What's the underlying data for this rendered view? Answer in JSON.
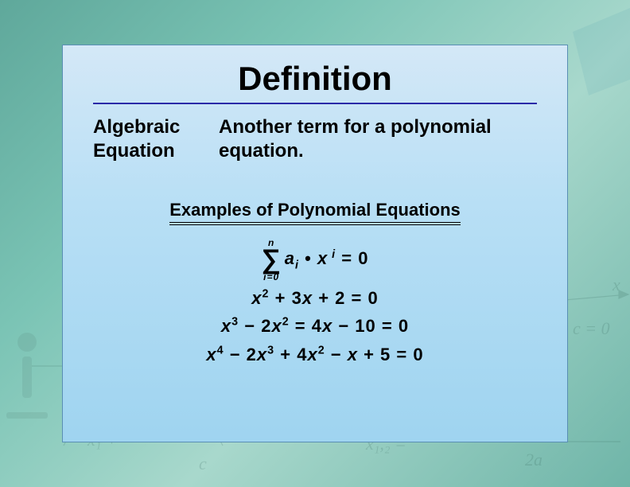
{
  "background": {
    "gradient_colors": [
      "#5fa89b",
      "#7bc4b5",
      "#a8d8cc",
      "#6fb5a8"
    ],
    "decor_opacity": 0.18
  },
  "card": {
    "bg_gradient": [
      "#d4e8f7",
      "#b8dff5",
      "#9fd4f0"
    ],
    "border_color": "#5a8fb5",
    "hr_color": "#2a2aa8"
  },
  "title": {
    "text": "Definition",
    "fontsize": 42,
    "color": "#000000"
  },
  "term": {
    "line1": "Algebraic",
    "line2": "Equation",
    "fontsize": 24
  },
  "definition": {
    "text": "Another term for a polynomial equation.",
    "fontsize": 24
  },
  "examples": {
    "heading": "Examples of Polynomial Equations",
    "heading_fontsize": 22,
    "underline": "double",
    "equations": [
      {
        "type": "summation",
        "upper": "n",
        "lower": "i=0",
        "body_html": "a<sub>i</sub> <span class='n'>•</span> x<sup class='it'> i</sup> <span class='n'> = 0</span>"
      },
      {
        "type": "poly",
        "html": "x<sup>2</sup> <span class='n'>+ 3</span>x <span class='n'>+ 2 = 0</span>"
      },
      {
        "type": "poly",
        "html": "x<sup>3</sup> <span class='n'>− 2</span>x<sup>2</sup> <span class='n'>= 4</span>x <span class='n'>− 10 = 0</span>"
      },
      {
        "type": "poly",
        "html": "x<sup>4</sup> <span class='n'>− 2</span>x<sup>3</sup> <span class='n'>+ 4</span>x<sup>2</sup> <span class='n'>−</span> x <span class='n'>+ 5 = 0</span>"
      }
    ],
    "eq_fontsize": 22,
    "eq_color": "#000000"
  }
}
